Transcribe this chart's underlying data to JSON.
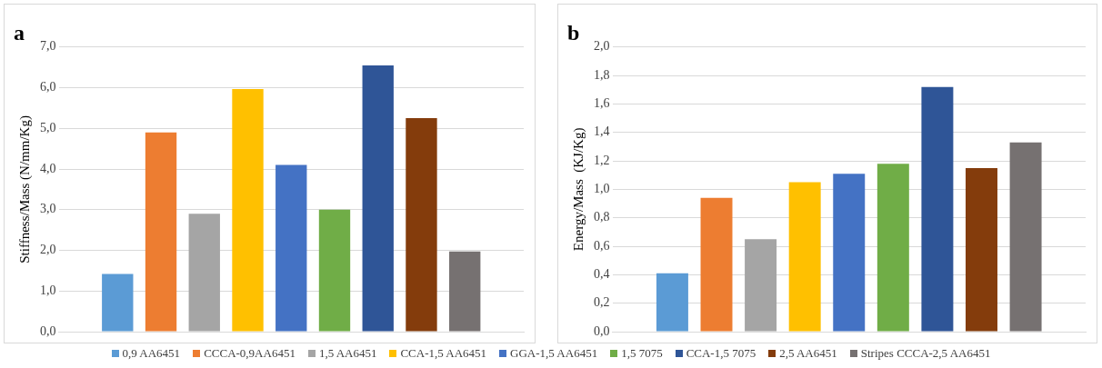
{
  "chart_data": [
    {
      "type": "bar",
      "title": "a",
      "ylabel": "Stiffness/Mass (N/mm/Kg)",
      "categories": [
        null
      ],
      "series": [
        {
          "name": "0,9 AA6451",
          "color": "#5b9bd5",
          "values": [
            1.42
          ]
        },
        {
          "name": "CCCA-0,9AA6451",
          "color": "#ed7d31",
          "values": [
            4.9
          ]
        },
        {
          "name": "1,5 AA6451",
          "color": "#a5a5a5",
          "values": [
            2.9
          ]
        },
        {
          "name": "CCA-1,5 AA6451",
          "color": "#ffc000",
          "values": [
            5.97
          ]
        },
        {
          "name": "GGA-1,5 AA6451",
          "color": "#4472c4",
          "values": [
            4.1
          ]
        },
        {
          "name": "1,5 7075",
          "color": "#70ad47",
          "values": [
            3.0
          ]
        },
        {
          "name": "CCA-1,5 7075",
          "color": "#2f5597",
          "values": [
            6.55
          ]
        },
        {
          "name": "2,5 AA6451",
          "color": "#843c0c",
          "values": [
            5.25
          ]
        },
        {
          "name": "Stripes CCCA-2,5 AA6451",
          "color": "#767171",
          "values": [
            1.97
          ]
        }
      ],
      "ylim": [
        0,
        7
      ],
      "yticks": [
        {
          "value": 0,
          "label": "0,0"
        },
        {
          "value": 1,
          "label": "1,0"
        },
        {
          "value": 2,
          "label": "2,0"
        },
        {
          "value": 3,
          "label": "3,0"
        },
        {
          "value": 4,
          "label": "4,0"
        },
        {
          "value": 5,
          "label": "5,0"
        },
        {
          "value": 6,
          "label": "6,0"
        },
        {
          "value": 7,
          "label": "7,0"
        }
      ],
      "grid": "y",
      "tick_labels": "y",
      "legend": "bottom"
    },
    {
      "type": "bar",
      "title": "b",
      "ylabel": "Energy/Mass  (KJ/Kg)",
      "categories": [
        null
      ],
      "series": [
        {
          "color": "#5b9bd5",
          "values": [
            0.41
          ]
        },
        {
          "color": "#ed7d31",
          "values": [
            0.94
          ]
        },
        {
          "color": "#a5a5a5",
          "values": [
            0.65
          ]
        },
        {
          "color": "#ffc000",
          "values": [
            1.05
          ]
        },
        {
          "color": "#4472c4",
          "values": [
            1.11
          ]
        },
        {
          "color": "#70ad47",
          "values": [
            1.18
          ]
        },
        {
          "color": "#2f5597",
          "values": [
            1.72
          ]
        },
        {
          "color": "#843c0c",
          "values": [
            1.15
          ]
        },
        {
          "color": "#767171",
          "values": [
            1.33
          ]
        }
      ],
      "ylim": [
        0,
        2
      ],
      "yticks": [
        {
          "value": 0,
          "label": "0,0"
        },
        {
          "value": 0.2,
          "label": "0,2"
        },
        {
          "value": 0.4,
          "label": "0,4"
        },
        {
          "value": 0.6,
          "label": "0,6"
        },
        {
          "value": 0.8,
          "label": "0,8"
        },
        {
          "value": 1,
          "label": "1,0"
        },
        {
          "value": 1.2,
          "label": "1,2"
        },
        {
          "value": 1.4,
          "label": "1,4"
        },
        {
          "value": 1.6,
          "label": "1,6"
        },
        {
          "value": 1.8,
          "label": "1,8"
        },
        {
          "value": 2,
          "label": "2,0"
        }
      ],
      "grid": "y",
      "tick_labels": "y"
    }
  ]
}
